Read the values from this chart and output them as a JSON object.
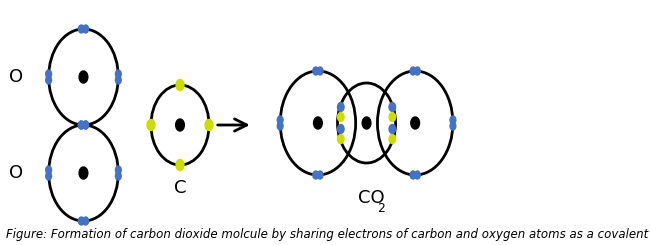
{
  "bg_color": "#ffffff",
  "electron_blue": "#4472C4",
  "electron_yellow": "#CCDD00",
  "circle_linewidth": 2.0,
  "caption": "Figure: Formation of carbon dioxide molcule by sharing electrons of carbon and oxygen atoms as a covalent bond",
  "caption_fontsize": 8.5,
  "label_fontsize": 13,
  "o_label": "O",
  "c_label": "C"
}
